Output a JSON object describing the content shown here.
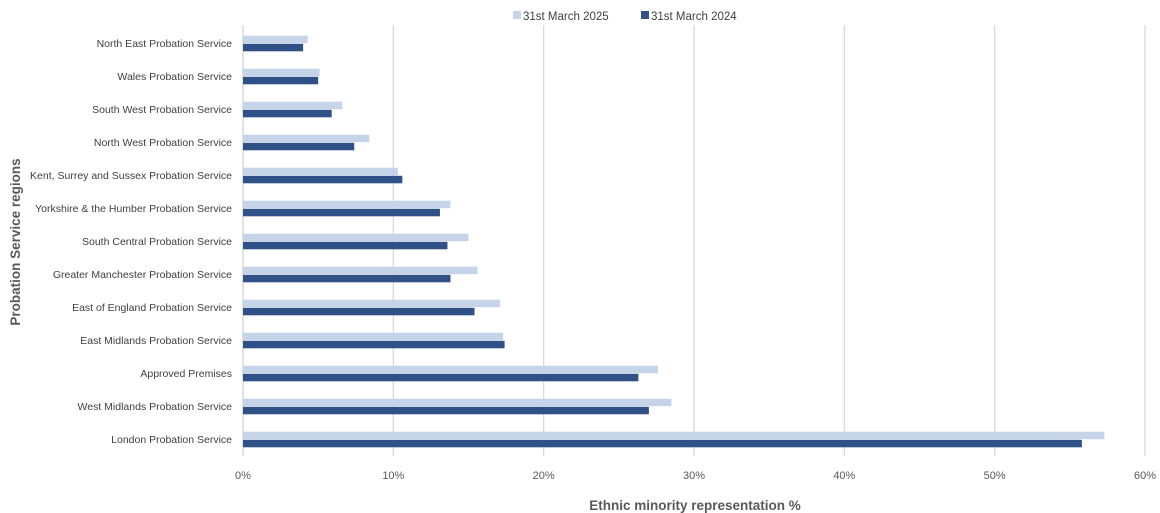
{
  "chart_data": {
    "type": "bar",
    "orientation": "horizontal",
    "categories": [
      "North East Probation Service",
      "Wales Probation Service",
      "South West Probation Service",
      "North West Probation Service",
      "Kent, Surrey and Sussex Probation Service",
      "Yorkshire & the Humber Probation Service",
      "South Central Probation Service",
      "Greater Manchester Probation Service",
      "East of England Probation Service",
      "East Midlands Probation Service",
      "Approved Premises",
      "West Midlands Probation Service",
      "London Probation Service"
    ],
    "series": [
      {
        "name": "31st March 2025",
        "color": "#c5d4e8",
        "values": [
          4.3,
          5.1,
          6.6,
          8.4,
          10.3,
          13.8,
          15.0,
          15.6,
          17.1,
          17.3,
          27.6,
          28.5,
          57.3
        ]
      },
      {
        "name": "31st March 2024",
        "color": "#2f5187",
        "values": [
          4.0,
          5.0,
          5.9,
          7.4,
          10.6,
          13.1,
          13.6,
          13.8,
          15.4,
          17.4,
          26.3,
          27.0,
          55.8
        ]
      }
    ],
    "xlabel": "Ethnic minority representation %",
    "ylabel": "Probation Service regions",
    "xlim": [
      0,
      60
    ],
    "xticks": [
      "0%",
      "10%",
      "20%",
      "30%",
      "40%",
      "50%",
      "60%"
    ],
    "grid": "vertical",
    "legend": "top-center"
  }
}
